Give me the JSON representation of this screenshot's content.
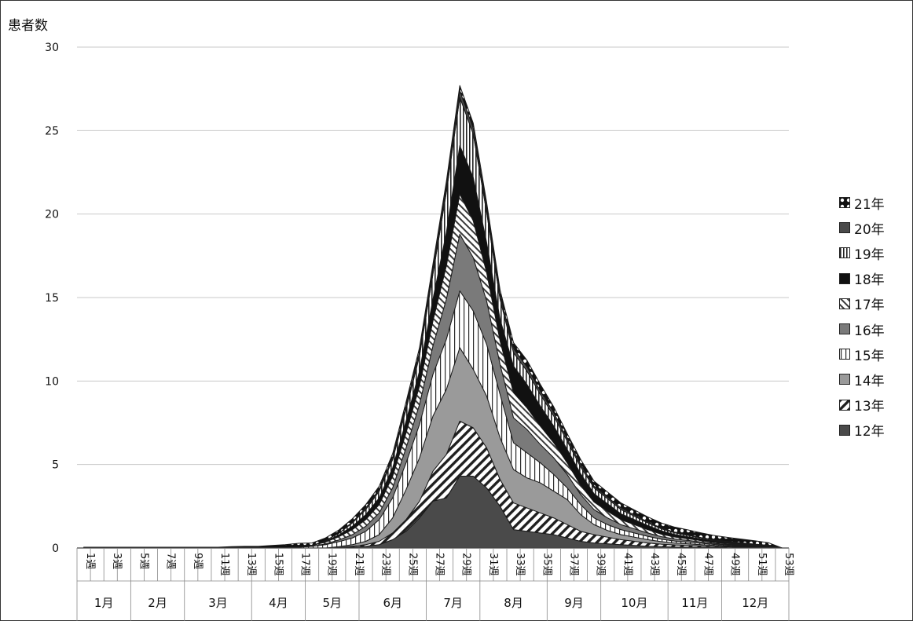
{
  "chart_data": {
    "type": "area",
    "stacked": true,
    "ylabel": "患者数",
    "ylim": [
      0,
      30
    ],
    "yticks": [
      0,
      5,
      10,
      15,
      20,
      25,
      30
    ],
    "grid": true,
    "legend_position": "right",
    "week_tick_labels": [
      "1週",
      "3週",
      "5週",
      "7週",
      "9週",
      "11週",
      "13週",
      "15週",
      "17週",
      "19週",
      "21週",
      "23週",
      "25週",
      "27週",
      "29週",
      "31週",
      "33週",
      "35週",
      "37週",
      "39週",
      "41週",
      "43週",
      "45週",
      "47週",
      "49週",
      "51週",
      "53週"
    ],
    "month_labels": [
      {
        "label": "1月",
        "from_week": 1,
        "to_week": 4
      },
      {
        "label": "2月",
        "from_week": 5,
        "to_week": 8
      },
      {
        "label": "3月",
        "from_week": 9,
        "to_week": 13
      },
      {
        "label": "4月",
        "from_week": 14,
        "to_week": 17
      },
      {
        "label": "5月",
        "from_week": 18,
        "to_week": 21
      },
      {
        "label": "6月",
        "from_week": 22,
        "to_week": 26
      },
      {
        "label": "7月",
        "from_week": 27,
        "to_week": 30
      },
      {
        "label": "8月",
        "from_week": 31,
        "to_week": 35
      },
      {
        "label": "9月",
        "from_week": 36,
        "to_week": 39
      },
      {
        "label": "10月",
        "from_week": 40,
        "to_week": 44
      },
      {
        "label": "11月",
        "from_week": 45,
        "to_week": 48
      },
      {
        "label": "12月",
        "from_week": 49,
        "to_week": 53
      }
    ],
    "x_weeks": [
      1,
      2,
      3,
      4,
      5,
      6,
      7,
      8,
      9,
      10,
      11,
      12,
      13,
      14,
      15,
      16,
      17,
      18,
      19,
      20,
      21,
      22,
      23,
      24,
      25,
      26,
      27,
      28,
      29,
      30,
      31,
      32,
      33,
      34,
      35,
      36,
      37,
      38,
      39,
      40,
      41,
      42,
      43,
      44,
      45,
      46,
      47,
      48,
      49,
      50,
      51,
      52,
      53
    ],
    "series": [
      {
        "name": "12年",
        "pattern": "solid-darkgray",
        "values": [
          0,
          0,
          0,
          0,
          0,
          0,
          0,
          0,
          0,
          0,
          0,
          0,
          0,
          0,
          0,
          0,
          0,
          0,
          0,
          0,
          0.05,
          0.1,
          0.2,
          0.5,
          1.0,
          1.8,
          2.8,
          3.0,
          4.3,
          4.3,
          3.6,
          2.5,
          1.1,
          1.0,
          0.9,
          0.8,
          0.6,
          0.4,
          0.3,
          0.25,
          0.2,
          0.15,
          0.1,
          0.08,
          0.06,
          0.05,
          0.04,
          0.03,
          0.02,
          0.02,
          0.01,
          0.01,
          0
        ]
      },
      {
        "name": "13年",
        "pattern": "diagonal",
        "values": [
          0,
          0,
          0,
          0,
          0,
          0,
          0,
          0,
          0,
          0,
          0,
          0,
          0,
          0,
          0,
          0,
          0,
          0,
          0,
          0.03,
          0.05,
          0.1,
          0.2,
          0.4,
          0.7,
          1.0,
          1.8,
          2.6,
          3.3,
          2.9,
          2.4,
          1.6,
          1.6,
          1.4,
          1.2,
          1.0,
          0.8,
          0.6,
          0.5,
          0.4,
          0.3,
          0.25,
          0.2,
          0.15,
          0.12,
          0.1,
          0.08,
          0.06,
          0.05,
          0.04,
          0.03,
          0.02,
          0
        ]
      },
      {
        "name": "14年",
        "pattern": "solid-gray",
        "values": [
          0,
          0,
          0,
          0,
          0,
          0,
          0,
          0,
          0,
          0,
          0,
          0,
          0,
          0,
          0,
          0,
          0,
          0,
          0,
          0.05,
          0.1,
          0.2,
          0.4,
          0.9,
          1.8,
          2.6,
          3.3,
          3.9,
          4.4,
          3.5,
          3.1,
          2.5,
          2.0,
          1.8,
          1.8,
          1.6,
          1.5,
          1.0,
          0.6,
          0.4,
          0.3,
          0.25,
          0.2,
          0.15,
          0.12,
          0.1,
          0.08,
          0.06,
          0.05,
          0.04,
          0.03,
          0.02,
          0
        ]
      },
      {
        "name": "15年",
        "pattern": "vertical-thin",
        "values": [
          0,
          0,
          0,
          0,
          0,
          0,
          0,
          0,
          0,
          0,
          0,
          0,
          0,
          0,
          0,
          0,
          0.05,
          0.1,
          0.2,
          0.3,
          0.4,
          0.6,
          0.9,
          1.2,
          1.6,
          2.0,
          2.5,
          3.0,
          3.4,
          3.5,
          3.1,
          2.6,
          1.6,
          1.5,
          1.2,
          1.0,
          0.7,
          0.6,
          0.4,
          0.35,
          0.3,
          0.25,
          0.2,
          0.15,
          0.12,
          0.1,
          0.08,
          0.06,
          0.05,
          0.04,
          0.03,
          0.02,
          0
        ]
      },
      {
        "name": "16年",
        "pattern": "solid-midgray",
        "values": [
          0,
          0,
          0,
          0,
          0,
          0,
          0,
          0,
          0,
          0,
          0,
          0,
          0,
          0,
          0,
          0,
          0,
          0,
          0.05,
          0.1,
          0.2,
          0.3,
          0.4,
          0.6,
          0.9,
          1.2,
          1.7,
          2.4,
          3.4,
          3.2,
          2.6,
          1.8,
          1.5,
          1.4,
          1.1,
          1.0,
          0.8,
          0.6,
          0.5,
          0.4,
          0.3,
          0.25,
          0.2,
          0.15,
          0.12,
          0.1,
          0.08,
          0.06,
          0.05,
          0.04,
          0.03,
          0.02,
          0
        ]
      },
      {
        "name": "17年",
        "pattern": "diagonal-dense",
        "values": [
          0,
          0,
          0,
          0,
          0,
          0,
          0,
          0,
          0,
          0,
          0,
          0,
          0,
          0,
          0,
          0,
          0.03,
          0.05,
          0.1,
          0.2,
          0.3,
          0.4,
          0.5,
          0.7,
          0.9,
          1.1,
          1.5,
          2.0,
          2.4,
          2.2,
          1.7,
          1.4,
          1.5,
          1.3,
          1.1,
          0.9,
          0.7,
          0.55,
          0.45,
          0.4,
          0.3,
          0.25,
          0.2,
          0.15,
          0.12,
          0.1,
          0.08,
          0.06,
          0.05,
          0.04,
          0.03,
          0.02,
          0
        ]
      },
      {
        "name": "18年",
        "pattern": "solid-black",
        "values": [
          0,
          0,
          0,
          0,
          0,
          0,
          0,
          0,
          0,
          0,
          0,
          0,
          0,
          0,
          0,
          0,
          0,
          0,
          0.05,
          0.1,
          0.2,
          0.3,
          0.4,
          0.5,
          0.7,
          0.9,
          1.3,
          2.0,
          2.9,
          2.6,
          1.8,
          1.3,
          1.6,
          1.4,
          1.2,
          1.0,
          0.8,
          0.7,
          0.5,
          0.45,
          0.35,
          0.3,
          0.25,
          0.2,
          0.15,
          0.12,
          0.1,
          0.08,
          0.06,
          0.05,
          0.04,
          0.03,
          0
        ]
      },
      {
        "name": "19年",
        "pattern": "vertical",
        "values": [
          0,
          0,
          0,
          0,
          0,
          0,
          0,
          0,
          0,
          0,
          0,
          0,
          0,
          0,
          0,
          0,
          0,
          0,
          0.05,
          0.1,
          0.2,
          0.3,
          0.4,
          0.5,
          0.7,
          0.9,
          1.5,
          2.4,
          2.9,
          2.6,
          1.8,
          1.2,
          0.8,
          0.8,
          0.7,
          0.6,
          0.5,
          0.4,
          0.35,
          0.3,
          0.25,
          0.2,
          0.15,
          0.12,
          0.1,
          0.08,
          0.06,
          0.05,
          0.04,
          0.03,
          0.02,
          0.01,
          0
        ]
      },
      {
        "name": "20年",
        "pattern": "solid-darkgray",
        "values": [
          0,
          0,
          0,
          0,
          0,
          0,
          0,
          0,
          0,
          0,
          0,
          0,
          0,
          0,
          0,
          0,
          0,
          0,
          0,
          0,
          0.05,
          0.1,
          0.1,
          0.15,
          0.2,
          0.25,
          0.3,
          0.35,
          0.4,
          0.35,
          0.3,
          0.25,
          0.25,
          0.25,
          0.2,
          0.2,
          0.15,
          0.15,
          0.1,
          0.1,
          0.1,
          0.08,
          0.06,
          0.05,
          0.04,
          0.03,
          0.02,
          0.02,
          0.01,
          0.01,
          0.01,
          0.01,
          0
        ]
      },
      {
        "name": "21年",
        "pattern": "dotted",
        "values": [
          0.05,
          0.05,
          0.05,
          0.05,
          0.05,
          0.05,
          0.05,
          0.05,
          0.05,
          0.05,
          0.05,
          0.08,
          0.1,
          0.1,
          0.15,
          0.2,
          0.2,
          0.15,
          0.15,
          0.2,
          0.2,
          0.2,
          0.2,
          0.2,
          0.25,
          0.25,
          0.3,
          0.3,
          0.3,
          0.3,
          0.3,
          0.3,
          0.35,
          0.4,
          0.4,
          0.35,
          0.3,
          0.3,
          0.3,
          0.3,
          0.3,
          0.3,
          0.3,
          0.3,
          0.3,
          0.3,
          0.28,
          0.26,
          0.25,
          0.22,
          0.2,
          0.15,
          0
        ]
      }
    ]
  },
  "legend_order": [
    "21年",
    "20年",
    "19年",
    "18年",
    "17年",
    "16年",
    "15年",
    "14年",
    "13年",
    "12年"
  ]
}
